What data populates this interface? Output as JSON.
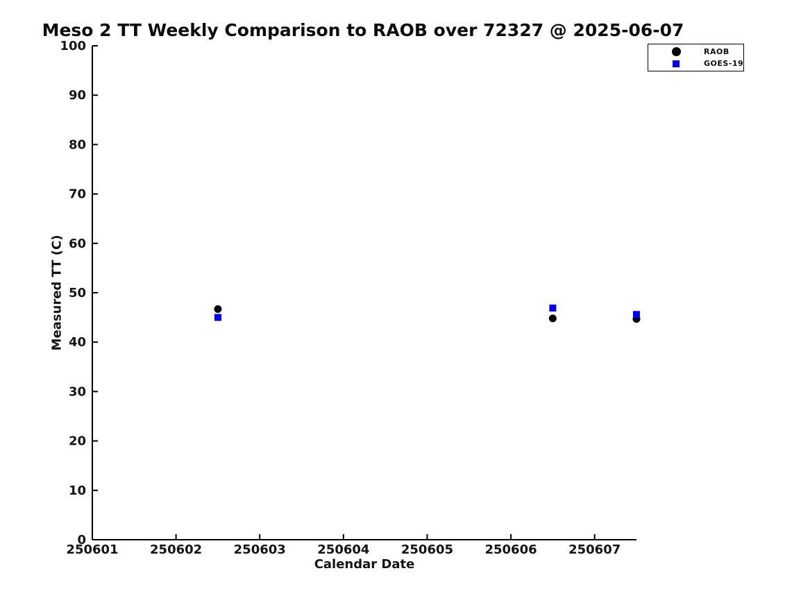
{
  "chart_data": {
    "type": "scatter",
    "title": "Meso 2 TT Weekly Comparison to RAOB over 72327 @ 2025-06-07",
    "xlabel": "Calendar Date",
    "ylabel": "Measured TT (C)",
    "xlim": [
      250601,
      250607.5
    ],
    "ylim": [
      0,
      100
    ],
    "xticks": [
      250601,
      250602,
      250603,
      250604,
      250605,
      250606,
      250607
    ],
    "yticks": [
      0,
      10,
      20,
      30,
      40,
      50,
      60,
      70,
      80,
      90,
      100
    ],
    "grid": false,
    "legend_position": "top-right",
    "axis_color": "#000000",
    "background_color": "#ffffff",
    "series": [
      {
        "name": "RAOB",
        "marker": "circle",
        "color": "#000000",
        "x": [
          250602.5,
          250606.5,
          250607.5
        ],
        "y": [
          46.7,
          44.8,
          44.7
        ]
      },
      {
        "name": "GOES-19",
        "marker": "square",
        "color": "#0000ff",
        "x": [
          250602.5,
          250606.5,
          250607.5
        ],
        "y": [
          45.0,
          46.9,
          45.6
        ]
      }
    ]
  }
}
